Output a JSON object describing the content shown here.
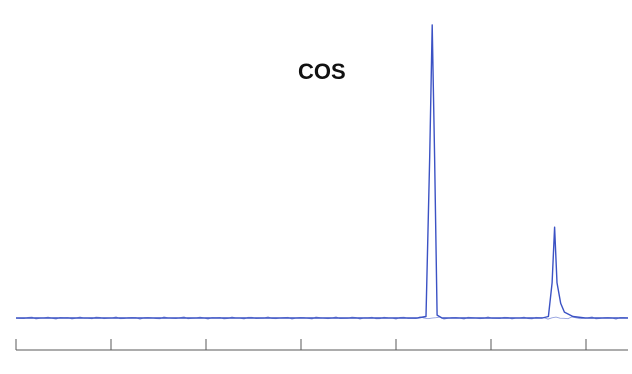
{
  "chart_data": {
    "type": "line",
    "title": "",
    "xlabel": "",
    "ylabel": "",
    "annotations": [
      {
        "text": "COS"
      }
    ],
    "x_range": [
      0,
      10
    ],
    "y_range": [
      0,
      100
    ],
    "x_ticks": [
      0,
      1,
      2,
      3,
      4,
      5,
      6
    ],
    "grid": false,
    "legend": "none",
    "series": [
      {
        "color": "#3b52c4",
        "x": [
          0.0,
          3.2,
          3.28,
          3.35,
          3.38,
          3.4,
          3.42,
          3.44,
          3.48,
          3.55,
          3.6,
          4.2,
          4.3,
          4.35,
          4.38,
          4.4,
          4.42,
          4.45,
          4.48,
          4.55,
          4.65,
          4.8,
          5.0
        ],
        "y": [
          0,
          0,
          0,
          0.5,
          55,
          100,
          55,
          1,
          0,
          0,
          0,
          0,
          0,
          0.5,
          12,
          31,
          12,
          5,
          2,
          0.5,
          0,
          0,
          0
        ]
      }
    ]
  }
}
